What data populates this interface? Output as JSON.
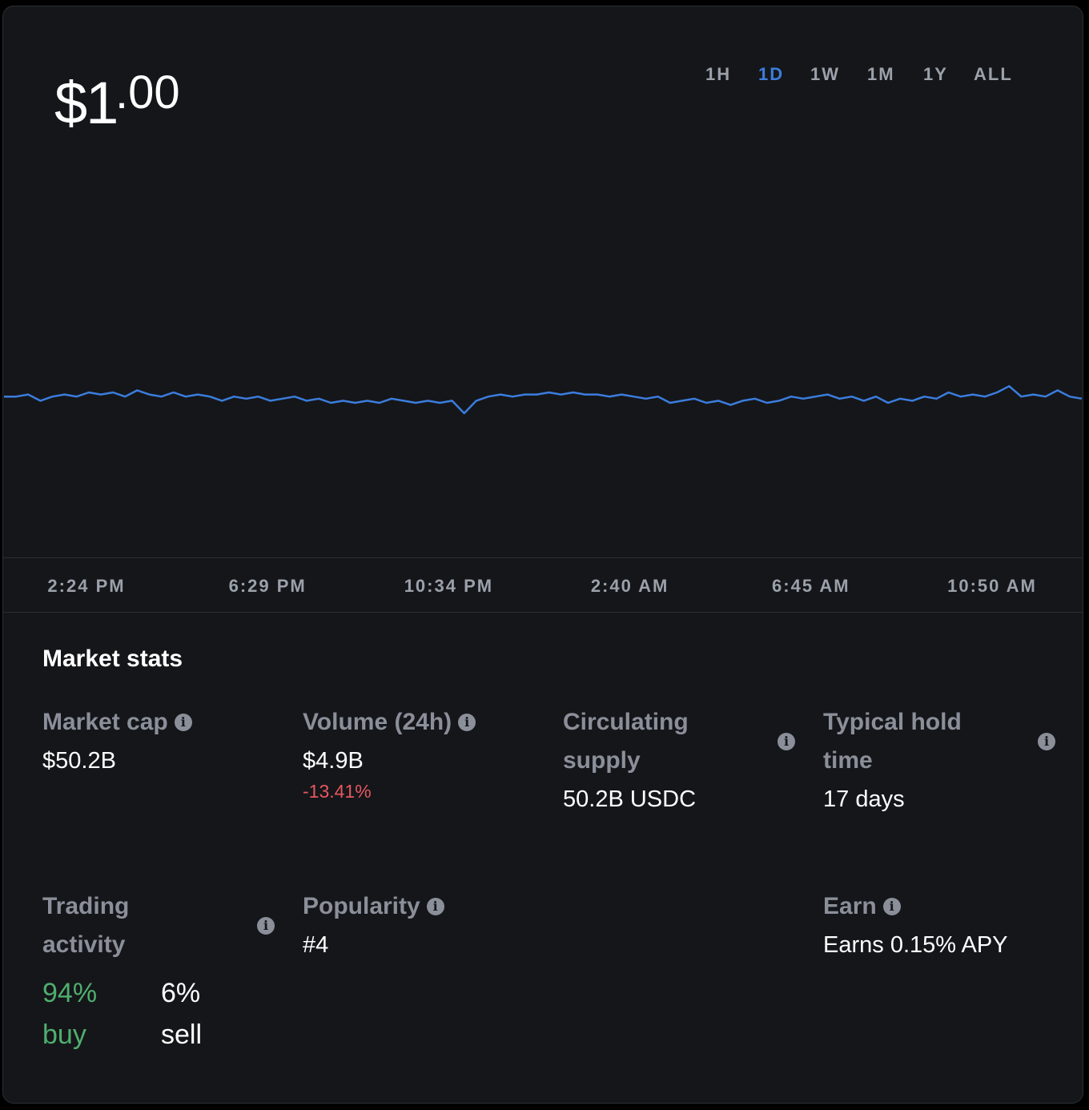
{
  "price": {
    "main": "$1",
    "fraction": ".00"
  },
  "ranges": {
    "options": [
      "1H",
      "1D",
      "1W",
      "1M",
      "1Y",
      "ALL"
    ],
    "selected": "1D"
  },
  "chart_data": {
    "type": "line",
    "color": "#3b7ddd",
    "x_labels": [
      "2:24 PM",
      "6:29 PM",
      "10:34 PM",
      "2:40 AM",
      "6:45 AM",
      "10:50 AM"
    ],
    "ylim": [
      0.99923,
      1.00123
    ],
    "values": [
      1.00001,
      1.00001,
      1.00002,
      0.99999,
      1.00001,
      1.00002,
      1.00001,
      1.00003,
      1.00002,
      1.00003,
      1.00001,
      1.00004,
      1.00002,
      1.00001,
      1.00003,
      1.00001,
      1.00002,
      1.00001,
      0.99999,
      1.00001,
      1.0,
      1.00001,
      0.99999,
      1.0,
      1.00001,
      0.99999,
      1.0,
      0.99998,
      0.99999,
      0.99998,
      0.99999,
      0.99998,
      1.0,
      0.99999,
      0.99998,
      0.99999,
      0.99998,
      0.99999,
      0.99993,
      0.99999,
      1.00001,
      1.00002,
      1.00001,
      1.00002,
      1.00002,
      1.00003,
      1.00002,
      1.00003,
      1.00002,
      1.00002,
      1.00001,
      1.00002,
      1.00001,
      1.0,
      1.00001,
      0.99998,
      0.99999,
      1.0,
      0.99998,
      0.99999,
      0.99997,
      0.99999,
      1.0,
      0.99998,
      0.99999,
      1.00001,
      1.0,
      1.00001,
      1.00002,
      1.0,
      1.00001,
      0.99999,
      1.00001,
      0.99998,
      1.0,
      0.99999,
      1.00001,
      1.0,
      1.00003,
      1.00001,
      1.00002,
      1.00001,
      1.00003,
      1.00006,
      1.00001,
      1.00002,
      1.00001,
      1.00004,
      1.00001,
      1.0
    ]
  },
  "market_stats": {
    "title": "Market stats",
    "market_cap": {
      "label": "Market cap",
      "value": "$50.2B"
    },
    "volume": {
      "label": "Volume (24h)",
      "value": "$4.9B",
      "change": "-13.41%"
    },
    "circulating_supply": {
      "label": "Circulating supply",
      "value": "50.2B USDC"
    },
    "hold_time": {
      "label": "Typical hold time",
      "value": "17 days"
    },
    "trading_activity": {
      "label": "Trading activity",
      "buy_pct": "94%",
      "buy": "buy",
      "sell_pct": "6%",
      "sell": "sell"
    },
    "popularity": {
      "label": "Popularity",
      "value": "#4"
    },
    "earn": {
      "label": "Earn",
      "value": "Earns 0.15% APY"
    }
  }
}
